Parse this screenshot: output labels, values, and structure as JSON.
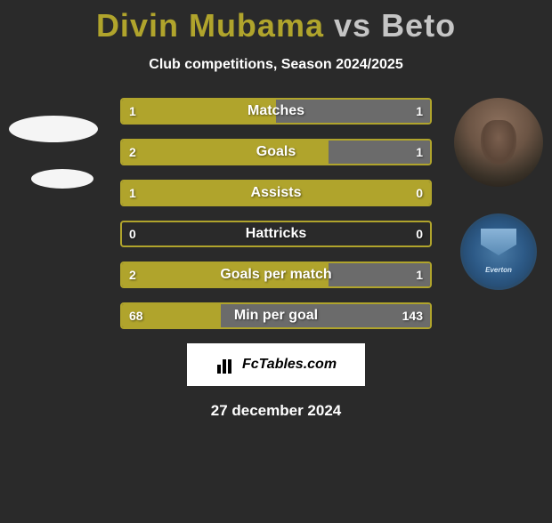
{
  "header": {
    "title_html": "Divin Mubama vs Beto",
    "title_player1": "Divin Mubama",
    "title_vs": "vs",
    "title_player2": "Beto",
    "subtitle": "Club competitions, Season 2024/2025",
    "player1_color": "#b0a42c",
    "player2_color": "#c5c5c5"
  },
  "avatars": {
    "right_crest_text": "Everton"
  },
  "colors": {
    "bar_border": "#b0a42c",
    "bar_left_fill": "#b0a42c",
    "bar_right_fill": "#6b6b6b",
    "background": "#2a2a2a"
  },
  "stats": [
    {
      "label": "Matches",
      "left_val": "1",
      "right_val": "1",
      "left_pct": 50,
      "right_pct": 50
    },
    {
      "label": "Goals",
      "left_val": "2",
      "right_val": "1",
      "left_pct": 67,
      "right_pct": 33
    },
    {
      "label": "Assists",
      "left_val": "1",
      "right_val": "0",
      "left_pct": 100,
      "right_pct": 0
    },
    {
      "label": "Hattricks",
      "left_val": "0",
      "right_val": "0",
      "left_pct": 0,
      "right_pct": 0
    },
    {
      "label": "Goals per match",
      "left_val": "2",
      "right_val": "1",
      "left_pct": 67,
      "right_pct": 33
    },
    {
      "label": "Min per goal",
      "left_val": "68",
      "right_val": "143",
      "left_pct": 32,
      "right_pct": 68
    }
  ],
  "watermark": {
    "text": "FcTables.com"
  },
  "footer": {
    "date": "27 december 2024"
  }
}
